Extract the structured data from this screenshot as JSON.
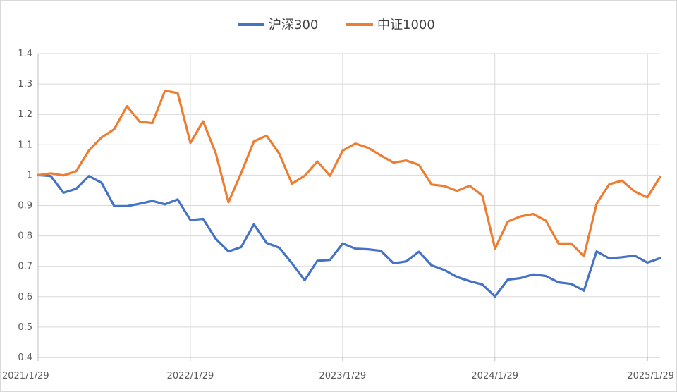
{
  "chart_data": {
    "type": "line",
    "title": "",
    "xlabel": "",
    "ylabel": "",
    "ylim": [
      0.4,
      1.4
    ],
    "y_ticks": [
      "0.4",
      "0.5",
      "0.6",
      "0.7",
      "0.8",
      "0.9",
      "1",
      "1.1",
      "1.2",
      "1.3",
      "1.4"
    ],
    "x_ticks": [
      "2021/1/29",
      "2022/1/29",
      "2023/1/29",
      "2024/1/29",
      "2025/1/29"
    ],
    "x_start": "2021/1/29",
    "x_end": "2025/2/28",
    "grid": {
      "horizontal": true,
      "vertical": true
    },
    "legend_position": "top-center",
    "series": [
      {
        "name": "沪深300",
        "color": "#4472C4",
        "values": [
          1.0,
          0.997,
          0.942,
          0.955,
          0.997,
          0.975,
          0.898,
          0.898,
          0.906,
          0.915,
          0.904,
          0.92,
          0.852,
          0.856,
          0.79,
          0.749,
          0.763,
          0.838,
          0.777,
          0.761,
          0.71,
          0.654,
          0.718,
          0.721,
          0.775,
          0.758,
          0.756,
          0.751,
          0.71,
          0.716,
          0.748,
          0.703,
          0.688,
          0.665,
          0.651,
          0.64,
          0.601,
          0.656,
          0.661,
          0.673,
          0.668,
          0.647,
          0.642,
          0.62,
          0.749,
          0.726,
          0.73,
          0.735,
          0.712,
          0.727
        ]
      },
      {
        "name": "中证1000",
        "color": "#ED7D31",
        "values": [
          1.0,
          1.006,
          0.999,
          1.013,
          1.081,
          1.124,
          1.151,
          1.227,
          1.176,
          1.171,
          1.278,
          1.27,
          1.106,
          1.177,
          1.072,
          0.911,
          1.007,
          1.111,
          1.13,
          1.071,
          0.972,
          0.998,
          1.045,
          0.998,
          1.081,
          1.104,
          1.09,
          1.065,
          1.041,
          1.048,
          1.034,
          0.969,
          0.964,
          0.948,
          0.965,
          0.933,
          0.758,
          0.847,
          0.864,
          0.872,
          0.85,
          0.775,
          0.775,
          0.733,
          0.906,
          0.97,
          0.982,
          0.946,
          0.927,
          0.994
        ]
      }
    ]
  }
}
